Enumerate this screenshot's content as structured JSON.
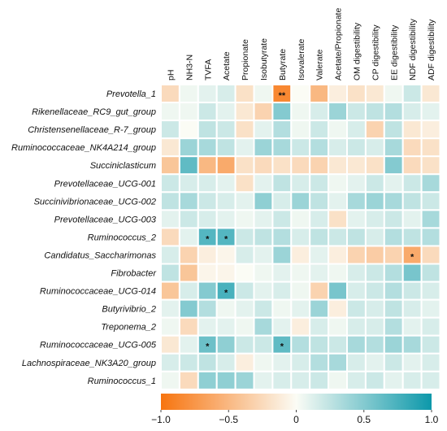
{
  "chart_data": {
    "type": "heatmap",
    "columns": [
      "pH",
      "NH3-N",
      "TVFA",
      "Acetate",
      "Propionate",
      "Isobutyrate",
      "Butyrate",
      "Isovalerate",
      "Valerate",
      "Acetate/Propionate",
      "OM digestibility",
      "CP digestibility",
      "EE digestibility",
      "NDF digestibility",
      "ADF digestibility"
    ],
    "rows": [
      "Prevotella_1",
      "Rikenellaceae_RC9_gut_group",
      "Christensenellaceae_R-7_group",
      "Ruminococcaceae_NK4A214_group",
      "Succiniclasticum",
      "Prevotellaceae_UCG-001",
      "Succinivibrionaceae_UCG-002",
      "Prevotellaceae_UCG-003",
      "Ruminococcus_2",
      "Candidatus_Saccharimonas",
      "Fibrobacter",
      "Ruminococcaceae_UCG-014",
      "Butyrivibrio_2",
      "Treponema_2",
      "Ruminococcaceae_UCG-005",
      "Lachnospiraceae_NK3A20_group",
      "Ruminococcus_1"
    ],
    "values": [
      [
        -0.25,
        0.05,
        0.1,
        0.15,
        -0.2,
        0.05,
        -0.85,
        0.0,
        -0.5,
        -0.1,
        -0.2,
        -0.15,
        0.05,
        0.2,
        -0.15
      ],
      [
        0.05,
        0.05,
        0.2,
        0.1,
        -0.15,
        -0.3,
        0.5,
        0.05,
        0.15,
        0.4,
        0.2,
        0.25,
        0.3,
        0.15,
        0.1
      ],
      [
        0.2,
        0.0,
        0.25,
        0.2,
        -0.2,
        0.1,
        0.3,
        0.05,
        0.2,
        0.05,
        0.15,
        -0.3,
        0.25,
        -0.15,
        -0.1
      ],
      [
        -0.15,
        0.4,
        0.35,
        0.25,
        0.1,
        0.4,
        0.35,
        0.2,
        0.3,
        0.15,
        0.2,
        0.15,
        0.35,
        -0.25,
        -0.2
      ],
      [
        -0.4,
        0.65,
        -0.5,
        -0.6,
        -0.2,
        -0.25,
        -0.2,
        -0.25,
        -0.3,
        -0.15,
        -0.15,
        -0.2,
        0.5,
        -0.25,
        -0.2
      ],
      [
        0.2,
        0.15,
        0.15,
        0.1,
        -0.2,
        0.1,
        0.25,
        0.15,
        0.2,
        0.05,
        0.1,
        0.2,
        0.1,
        0.2,
        0.35
      ],
      [
        0.25,
        0.35,
        0.2,
        0.15,
        0.1,
        0.45,
        0.15,
        0.4,
        0.25,
        0.1,
        0.35,
        0.4,
        0.35,
        0.25,
        0.2
      ],
      [
        0.1,
        0.2,
        0.15,
        0.1,
        0.05,
        0.1,
        0.2,
        0.05,
        0.15,
        -0.2,
        0.1,
        0.15,
        0.2,
        0.1,
        0.35
      ],
      [
        -0.25,
        0.1,
        0.7,
        0.7,
        0.2,
        0.25,
        0.3,
        0.15,
        0.25,
        0.2,
        0.25,
        0.15,
        0.3,
        0.25,
        0.3
      ],
      [
        0.15,
        -0.3,
        -0.1,
        -0.05,
        0.15,
        0.1,
        0.4,
        -0.1,
        0.1,
        -0.1,
        -0.3,
        -0.35,
        -0.3,
        -0.6,
        -0.25
      ],
      [
        0.25,
        -0.4,
        -0.05,
        -0.05,
        0.0,
        0.05,
        0.1,
        0.05,
        0.1,
        0.05,
        0.15,
        0.2,
        0.3,
        0.55,
        0.25
      ],
      [
        -0.4,
        0.15,
        0.5,
        0.75,
        0.2,
        0.1,
        0.15,
        0.05,
        -0.3,
        0.55,
        0.15,
        0.2,
        0.3,
        0.2,
        0.15
      ],
      [
        0.1,
        0.5,
        0.3,
        0.05,
        0.1,
        0.2,
        0.05,
        0.1,
        0.4,
        -0.1,
        0.2,
        0.15,
        0.25,
        0.15,
        0.1
      ],
      [
        0.05,
        -0.25,
        0.1,
        0.1,
        0.05,
        0.35,
        0.1,
        -0.1,
        0.15,
        0.05,
        0.15,
        0.15,
        0.3,
        0.1,
        0.15
      ],
      [
        -0.15,
        0.1,
        0.6,
        0.45,
        0.2,
        0.2,
        0.65,
        0.3,
        0.25,
        0.2,
        0.35,
        0.3,
        0.4,
        0.35,
        0.2
      ],
      [
        0.15,
        0.2,
        0.25,
        0.15,
        -0.1,
        0.05,
        0.1,
        0.15,
        0.3,
        0.35,
        0.15,
        0.1,
        0.2,
        0.1,
        0.15
      ],
      [
        0.05,
        -0.25,
        0.45,
        0.45,
        0.4,
        0.1,
        0.15,
        0.15,
        0.2,
        0.05,
        0.15,
        0.2,
        0.1,
        0.15,
        0.15
      ]
    ],
    "significance": [
      {
        "row": 0,
        "col": 6,
        "mark": "**"
      },
      {
        "row": 8,
        "col": 2,
        "mark": "*"
      },
      {
        "row": 8,
        "col": 3,
        "mark": "*"
      },
      {
        "row": 9,
        "col": 13,
        "mark": "*"
      },
      {
        "row": 11,
        "col": 3,
        "mark": "*"
      },
      {
        "row": 14,
        "col": 2,
        "mark": "*"
      },
      {
        "row": 14,
        "col": 6,
        "mark": "*"
      }
    ],
    "colorbar": {
      "range": [
        -1.0,
        1.0
      ],
      "ticks": [
        -1.0,
        -0.5,
        0,
        0.5,
        1.0
      ],
      "tick_labels": [
        "−1.0",
        "−0.5",
        "0",
        "0.5",
        "1.0"
      ],
      "colors": {
        "negative": "#f7740f",
        "neutral": "#fbfcf5",
        "positive": "#0c98aa"
      }
    },
    "legend": "bottom"
  }
}
